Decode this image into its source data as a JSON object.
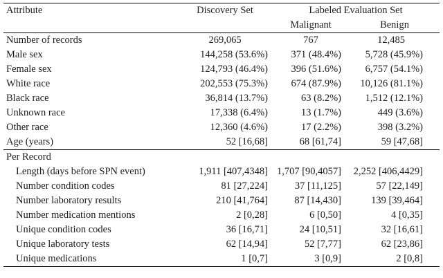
{
  "table": {
    "header": {
      "attribute_label": "Attribute",
      "discovery_label": "Discovery Set",
      "evaluation_group_label": "Labeled Evaluation Set",
      "malignant_label": "Malignant",
      "benign_label": "Benign"
    },
    "body_rows": [
      {
        "label": "Number of records",
        "discovery": "269,065",
        "malignant": "767",
        "benign": "12,485",
        "align": "center"
      },
      {
        "label": "Male sex",
        "discovery": "144,258 (53.6%)",
        "malignant": "371 (48.4%)",
        "benign": "5,728 (45.9%)"
      },
      {
        "label": "Female sex",
        "discovery": "124,793 (46.4%)",
        "malignant": "396 (51.6%)",
        "benign": "6,757 (54.1%)"
      },
      {
        "label": "White race",
        "discovery": "202,553 (75.3%)",
        "malignant": "674 (87.9%)",
        "benign": "10,126 (81.1%)"
      },
      {
        "label": "Black race",
        "discovery": "36,814 (13.7%)",
        "malignant": "63 (8.2%)",
        "benign": "1,512 (12.1%)"
      },
      {
        "label": "Unknown race",
        "discovery": "17,338 (6.4%)",
        "malignant": "13 (1.7%)",
        "benign": "449 (3.6%)"
      },
      {
        "label": "Other race",
        "discovery": "12,360 (4.6%)",
        "malignant": "17 (2.2%)",
        "benign": "398 (3.2%)"
      },
      {
        "label": "Age (years)",
        "discovery": "52 [16,68]",
        "malignant": "68 [61,74]",
        "benign": "59 [47,68]"
      }
    ],
    "section_label": "Per Record",
    "section_rows": [
      {
        "label": "Length (days before SPN event)",
        "discovery": "1,911 [407,4348]",
        "malignant": "1,707 [90,4057]",
        "benign": "2,252 [406,4429]"
      },
      {
        "label": "Number condition codes",
        "discovery": "81 [27,224]",
        "malignant": "37 [11,125]",
        "benign": "57 [22,149]"
      },
      {
        "label": "Number laboratory results",
        "discovery": "210 [41,764]",
        "malignant": "87 [14,430]",
        "benign": "139 [39,464]"
      },
      {
        "label": "Number medication mentions",
        "discovery": "2 [0,28]",
        "malignant": "6 [0,50]",
        "benign": "4 [0,35]"
      },
      {
        "label": "Unique condition codes",
        "discovery": "36 [16,71]",
        "malignant": "24 [10,51]",
        "benign": "32 [16,61]"
      },
      {
        "label": "Unique laboratory tests",
        "discovery": "62 [14,94]",
        "malignant": "52 [7,77]",
        "benign": "62 [23,86]"
      },
      {
        "label": "Unique medications",
        "discovery": "1 [0,7]",
        "malignant": "3 [0,9]",
        "benign": "2 [0,8]"
      }
    ]
  }
}
